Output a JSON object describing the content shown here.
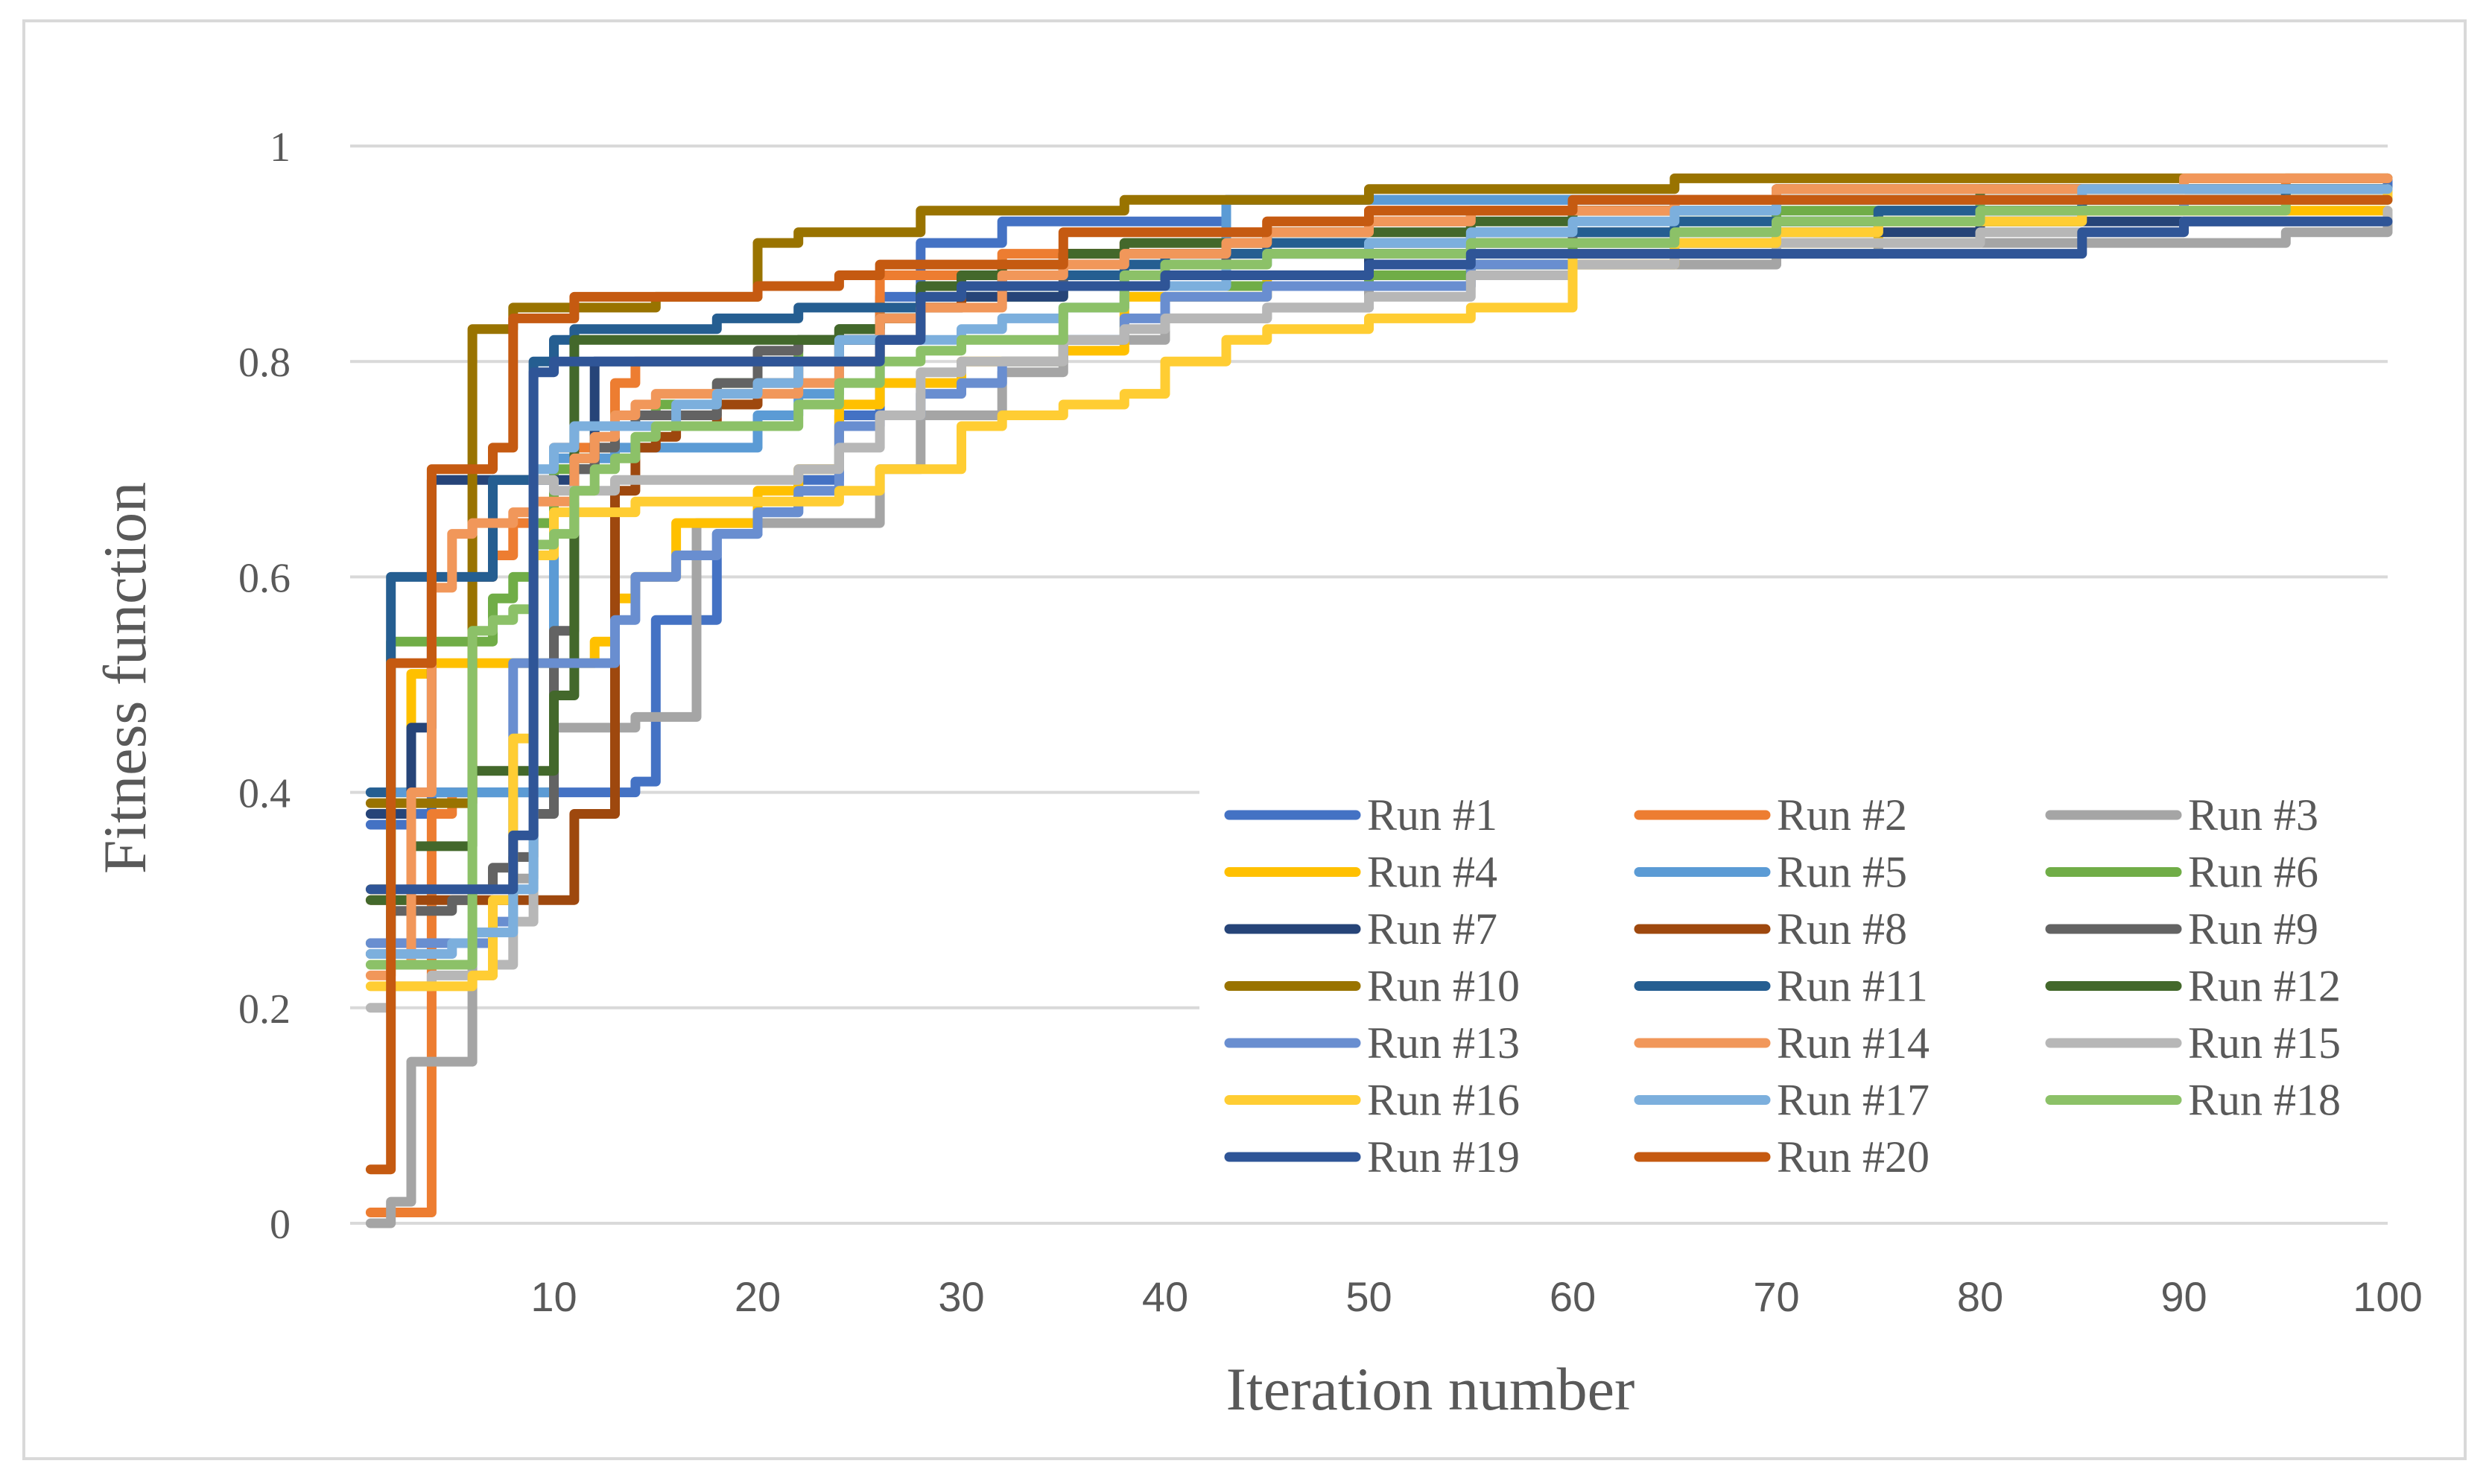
{
  "chart_data": {
    "type": "line",
    "title": "",
    "xlabel": "Iteration number",
    "ylabel": "Fitness function",
    "xlim": [
      0,
      100
    ],
    "ylim": [
      0,
      1
    ],
    "x_ticks": [
      10,
      20,
      30,
      40,
      50,
      60,
      70,
      80,
      90,
      100
    ],
    "y_ticks": [
      0,
      0.2,
      0.4,
      0.6,
      0.8,
      1
    ],
    "y_tick_labels": [
      "0",
      "0.2",
      "0.4",
      "0.6",
      "0.8",
      "1"
    ],
    "grid": "horizontal",
    "legend_position": "bottom-right",
    "x": [
      1,
      2,
      3,
      4,
      5,
      6,
      7,
      8,
      9,
      10,
      11,
      12,
      13,
      14,
      15,
      16,
      17,
      18,
      20,
      22,
      24,
      26,
      28,
      30,
      32,
      35,
      38,
      40,
      43,
      45,
      50,
      55,
      60,
      65,
      70,
      75,
      80,
      85,
      90,
      95,
      100
    ],
    "series": [
      {
        "name": "Run #1",
        "color": "#4472C4",
        "values": [
          0.37,
          0.37,
          0.38,
          0.4,
          0.4,
          0.4,
          0.4,
          0.4,
          0.4,
          0.4,
          0.4,
          0.4,
          0.4,
          0.41,
          0.56,
          0.56,
          0.56,
          0.64,
          0.66,
          0.69,
          0.75,
          0.86,
          0.91,
          0.91,
          0.93,
          0.93,
          0.93,
          0.93,
          0.95,
          0.95,
          0.95,
          0.95,
          0.95,
          0.95,
          0.96,
          0.96,
          0.96,
          0.96,
          0.96,
          0.96,
          0.97
        ]
      },
      {
        "name": "Run #2",
        "color": "#ED7D31",
        "values": [
          0.01,
          0.01,
          0.01,
          0.38,
          0.4,
          0.6,
          0.62,
          0.65,
          0.65,
          0.72,
          0.72,
          0.72,
          0.78,
          0.8,
          0.8,
          0.8,
          0.8,
          0.8,
          0.8,
          0.8,
          0.82,
          0.88,
          0.88,
          0.88,
          0.9,
          0.9,
          0.91,
          0.91,
          0.92,
          0.93,
          0.94,
          0.94,
          0.94,
          0.95,
          0.96,
          0.96,
          0.96,
          0.96,
          0.96,
          0.97,
          0.97
        ]
      },
      {
        "name": "Run #3",
        "color": "#A5A5A5",
        "values": [
          0.0,
          0.02,
          0.15,
          0.15,
          0.15,
          0.27,
          0.3,
          0.32,
          0.4,
          0.46,
          0.46,
          0.46,
          0.46,
          0.47,
          0.47,
          0.47,
          0.65,
          0.65,
          0.65,
          0.65,
          0.65,
          0.7,
          0.75,
          0.75,
          0.79,
          0.82,
          0.82,
          0.84,
          0.84,
          0.85,
          0.87,
          0.89,
          0.89,
          0.89,
          0.9,
          0.91,
          0.91,
          0.91,
          0.91,
          0.92,
          0.93
        ]
      },
      {
        "name": "Run #4",
        "color": "#FFC000",
        "values": [
          0.31,
          0.4,
          0.51,
          0.52,
          0.52,
          0.52,
          0.52,
          0.52,
          0.52,
          0.52,
          0.52,
          0.54,
          0.58,
          0.6,
          0.6,
          0.65,
          0.65,
          0.65,
          0.68,
          0.7,
          0.76,
          0.78,
          0.78,
          0.8,
          0.8,
          0.81,
          0.86,
          0.86,
          0.86,
          0.88,
          0.88,
          0.89,
          0.89,
          0.9,
          0.91,
          0.92,
          0.93,
          0.94,
          0.94,
          0.94,
          0.94
        ]
      },
      {
        "name": "Run #5",
        "color": "#5B9BD5",
        "values": [
          0.4,
          0.4,
          0.4,
          0.4,
          0.4,
          0.4,
          0.4,
          0.4,
          0.4,
          0.71,
          0.71,
          0.71,
          0.72,
          0.72,
          0.72,
          0.72,
          0.72,
          0.72,
          0.75,
          0.77,
          0.8,
          0.82,
          0.85,
          0.86,
          0.88,
          0.89,
          0.9,
          0.9,
          0.95,
          0.95,
          0.95,
          0.95,
          0.95,
          0.95,
          0.95,
          0.95,
          0.96,
          0.96,
          0.96,
          0.96,
          0.96
        ]
      },
      {
        "name": "Run #6",
        "color": "#70AD47",
        "values": [
          0.26,
          0.54,
          0.54,
          0.54,
          0.54,
          0.54,
          0.58,
          0.6,
          0.65,
          0.7,
          0.71,
          0.74,
          0.75,
          0.75,
          0.76,
          0.76,
          0.76,
          0.78,
          0.8,
          0.82,
          0.83,
          0.84,
          0.85,
          0.86,
          0.86,
          0.87,
          0.87,
          0.87,
          0.87,
          0.87,
          0.88,
          0.89,
          0.91,
          0.93,
          0.94,
          0.94,
          0.95,
          0.95,
          0.95,
          0.96,
          0.96
        ]
      },
      {
        "name": "Run #7",
        "color": "#264478",
        "values": [
          0.38,
          0.38,
          0.46,
          0.69,
          0.69,
          0.69,
          0.69,
          0.69,
          0.69,
          0.69,
          0.7,
          0.8,
          0.8,
          0.8,
          0.8,
          0.8,
          0.8,
          0.8,
          0.8,
          0.8,
          0.82,
          0.84,
          0.85,
          0.86,
          0.86,
          0.87,
          0.87,
          0.88,
          0.88,
          0.88,
          0.9,
          0.91,
          0.91,
          0.91,
          0.92,
          0.92,
          0.93,
          0.93,
          0.93,
          0.93,
          0.93
        ]
      },
      {
        "name": "Run #8",
        "color": "#9E480E",
        "values": [
          0.3,
          0.3,
          0.3,
          0.3,
          0.3,
          0.3,
          0.3,
          0.3,
          0.3,
          0.3,
          0.38,
          0.38,
          0.68,
          0.72,
          0.73,
          0.74,
          0.74,
          0.76,
          0.78,
          0.8,
          0.8,
          0.82,
          0.85,
          0.88,
          0.88,
          0.9,
          0.9,
          0.9,
          0.91,
          0.92,
          0.93,
          0.94,
          0.94,
          0.95,
          0.96,
          0.96,
          0.96,
          0.96,
          0.96,
          0.96,
          0.96
        ]
      },
      {
        "name": "Run #9",
        "color": "#636363",
        "values": [
          0.25,
          0.29,
          0.29,
          0.29,
          0.3,
          0.31,
          0.33,
          0.34,
          0.38,
          0.55,
          0.7,
          0.72,
          0.74,
          0.75,
          0.75,
          0.75,
          0.75,
          0.78,
          0.81,
          0.82,
          0.83,
          0.84,
          0.86,
          0.87,
          0.87,
          0.88,
          0.88,
          0.89,
          0.9,
          0.9,
          0.91,
          0.91,
          0.92,
          0.92,
          0.93,
          0.94,
          0.94,
          0.95,
          0.95,
          0.95,
          0.95
        ]
      },
      {
        "name": "Run #10",
        "color": "#997300",
        "values": [
          0.39,
          0.39,
          0.39,
          0.39,
          0.39,
          0.83,
          0.83,
          0.85,
          0.85,
          0.85,
          0.85,
          0.85,
          0.85,
          0.85,
          0.86,
          0.86,
          0.86,
          0.86,
          0.91,
          0.92,
          0.92,
          0.92,
          0.94,
          0.94,
          0.94,
          0.94,
          0.95,
          0.95,
          0.95,
          0.95,
          0.96,
          0.96,
          0.96,
          0.97,
          0.97,
          0.97,
          0.97,
          0.97,
          0.97,
          0.97,
          0.97
        ]
      },
      {
        "name": "Run #11",
        "color": "#255E91",
        "values": [
          0.4,
          0.6,
          0.6,
          0.6,
          0.6,
          0.6,
          0.69,
          0.69,
          0.8,
          0.82,
          0.83,
          0.83,
          0.83,
          0.83,
          0.83,
          0.83,
          0.83,
          0.84,
          0.84,
          0.85,
          0.85,
          0.85,
          0.87,
          0.87,
          0.88,
          0.88,
          0.89,
          0.9,
          0.9,
          0.91,
          0.91,
          0.92,
          0.92,
          0.93,
          0.93,
          0.94,
          0.94,
          0.95,
          0.95,
          0.96,
          0.96
        ]
      },
      {
        "name": "Run #12",
        "color": "#43682B",
        "values": [
          0.3,
          0.3,
          0.35,
          0.35,
          0.35,
          0.42,
          0.42,
          0.42,
          0.42,
          0.49,
          0.82,
          0.82,
          0.82,
          0.82,
          0.82,
          0.82,
          0.82,
          0.82,
          0.82,
          0.82,
          0.83,
          0.84,
          0.87,
          0.88,
          0.89,
          0.9,
          0.91,
          0.91,
          0.91,
          0.92,
          0.92,
          0.93,
          0.94,
          0.94,
          0.95,
          0.95,
          0.96,
          0.96,
          0.96,
          0.96,
          0.96
        ]
      },
      {
        "name": "Run #13",
        "color": "#698ED0",
        "values": [
          0.26,
          0.26,
          0.26,
          0.26,
          0.26,
          0.26,
          0.28,
          0.52,
          0.52,
          0.52,
          0.52,
          0.52,
          0.56,
          0.6,
          0.6,
          0.62,
          0.62,
          0.64,
          0.66,
          0.68,
          0.74,
          0.75,
          0.77,
          0.78,
          0.8,
          0.82,
          0.84,
          0.86,
          0.86,
          0.87,
          0.87,
          0.89,
          0.9,
          0.91,
          0.92,
          0.93,
          0.94,
          0.94,
          0.95,
          0.95,
          0.96
        ]
      },
      {
        "name": "Run #14",
        "color": "#F1975A",
        "values": [
          0.23,
          0.24,
          0.4,
          0.59,
          0.64,
          0.65,
          0.65,
          0.66,
          0.67,
          0.67,
          0.71,
          0.73,
          0.75,
          0.76,
          0.77,
          0.77,
          0.77,
          0.77,
          0.77,
          0.78,
          0.8,
          0.84,
          0.85,
          0.85,
          0.88,
          0.89,
          0.9,
          0.9,
          0.91,
          0.92,
          0.93,
          0.94,
          0.94,
          0.95,
          0.96,
          0.96,
          0.96,
          0.96,
          0.97,
          0.97,
          0.97
        ]
      },
      {
        "name": "Run #15",
        "color": "#B7B7B7",
        "values": [
          0.2,
          0.22,
          0.22,
          0.23,
          0.23,
          0.23,
          0.24,
          0.28,
          0.69,
          0.68,
          0.68,
          0.68,
          0.69,
          0.69,
          0.69,
          0.69,
          0.69,
          0.69,
          0.69,
          0.7,
          0.72,
          0.75,
          0.79,
          0.8,
          0.8,
          0.82,
          0.83,
          0.84,
          0.84,
          0.85,
          0.86,
          0.88,
          0.89,
          0.9,
          0.91,
          0.91,
          0.92,
          0.92,
          0.93,
          0.93,
          0.94
        ]
      },
      {
        "name": "Run #16",
        "color": "#FFCD33",
        "values": [
          0.22,
          0.22,
          0.22,
          0.22,
          0.22,
          0.23,
          0.3,
          0.45,
          0.62,
          0.66,
          0.66,
          0.66,
          0.66,
          0.67,
          0.67,
          0.67,
          0.67,
          0.67,
          0.67,
          0.67,
          0.68,
          0.7,
          0.7,
          0.74,
          0.75,
          0.76,
          0.77,
          0.8,
          0.82,
          0.83,
          0.84,
          0.85,
          0.9,
          0.91,
          0.92,
          0.93,
          0.93,
          0.94,
          0.94,
          0.95,
          0.96
        ]
      },
      {
        "name": "Run #17",
        "color": "#7CAFDD",
        "values": [
          0.25,
          0.25,
          0.25,
          0.25,
          0.26,
          0.27,
          0.27,
          0.31,
          0.7,
          0.72,
          0.74,
          0.74,
          0.74,
          0.74,
          0.74,
          0.76,
          0.76,
          0.77,
          0.78,
          0.8,
          0.82,
          0.82,
          0.82,
          0.83,
          0.84,
          0.85,
          0.87,
          0.87,
          0.89,
          0.9,
          0.91,
          0.92,
          0.93,
          0.94,
          0.95,
          0.95,
          0.95,
          0.96,
          0.96,
          0.96,
          0.96
        ]
      },
      {
        "name": "Run #18",
        "color": "#8CC168",
        "values": [
          0.24,
          0.24,
          0.24,
          0.24,
          0.24,
          0.55,
          0.56,
          0.57,
          0.63,
          0.64,
          0.68,
          0.7,
          0.71,
          0.73,
          0.74,
          0.74,
          0.74,
          0.74,
          0.74,
          0.76,
          0.78,
          0.8,
          0.81,
          0.82,
          0.82,
          0.85,
          0.88,
          0.89,
          0.89,
          0.9,
          0.9,
          0.91,
          0.91,
          0.92,
          0.93,
          0.93,
          0.94,
          0.94,
          0.94,
          0.95,
          0.95
        ]
      },
      {
        "name": "Run #19",
        "color": "#2F5597",
        "values": [
          0.31,
          0.31,
          0.31,
          0.31,
          0.31,
          0.31,
          0.31,
          0.36,
          0.79,
          0.8,
          0.8,
          0.8,
          0.8,
          0.8,
          0.8,
          0.8,
          0.8,
          0.8,
          0.8,
          0.8,
          0.8,
          0.82,
          0.86,
          0.87,
          0.87,
          0.87,
          0.87,
          0.88,
          0.88,
          0.88,
          0.89,
          0.9,
          0.9,
          0.9,
          0.9,
          0.9,
          0.9,
          0.92,
          0.93,
          0.93,
          0.93
        ]
      },
      {
        "name": "Run #20",
        "color": "#C55A11",
        "values": [
          0.05,
          0.52,
          0.52,
          0.7,
          0.7,
          0.7,
          0.72,
          0.84,
          0.84,
          0.84,
          0.86,
          0.86,
          0.86,
          0.86,
          0.86,
          0.86,
          0.86,
          0.86,
          0.87,
          0.87,
          0.88,
          0.89,
          0.89,
          0.89,
          0.89,
          0.92,
          0.92,
          0.92,
          0.92,
          0.93,
          0.94,
          0.94,
          0.95,
          0.95,
          0.95,
          0.95,
          0.95,
          0.95,
          0.95,
          0.95,
          0.95
        ]
      }
    ]
  }
}
